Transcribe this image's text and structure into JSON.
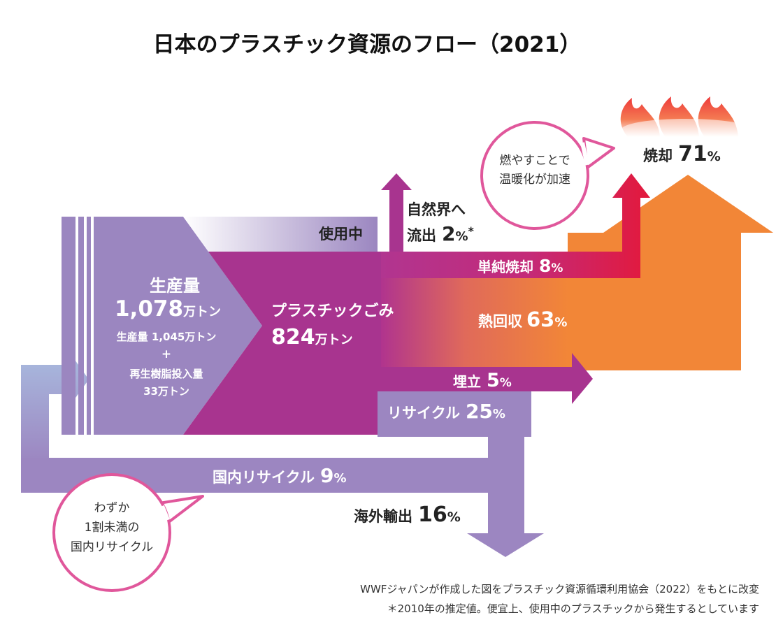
{
  "title": "日本のプラスチック資源のフロー（2021）",
  "production": {
    "heading": "生産量",
    "total_value": "1,078",
    "total_unit": "万トン",
    "breakdown_line1": "生産量 1,045万トン",
    "plus": "+",
    "breakdown_line2": "再生樹脂投入量",
    "breakdown_line3": "33万トン"
  },
  "waste": {
    "label": "プラスチックごみ",
    "value": "824",
    "unit": "万トン"
  },
  "flows": {
    "in_use": {
      "label": "使用中"
    },
    "nature": {
      "label_line1": "自然界へ",
      "label_line2": "流出",
      "value": "2",
      "unit": "%",
      "mark": "*"
    },
    "simple_incineration": {
      "label": "単純焼却",
      "value": "8",
      "unit": "%"
    },
    "heat_recovery": {
      "label": "熱回収",
      "value": "63",
      "unit": "%"
    },
    "landfill": {
      "label": "埋立",
      "value": "5",
      "unit": "%"
    },
    "recycle": {
      "label": "リサイクル",
      "value": "25",
      "unit": "%"
    },
    "domestic_recycle": {
      "label": "国内リサイクル",
      "value": "9",
      "unit": "%"
    },
    "export": {
      "label": "海外輸出",
      "value": "16",
      "unit": "%"
    },
    "incineration_total": {
      "label": "焼却",
      "value": "71",
      "unit": "%"
    }
  },
  "bubbles": {
    "warming": {
      "line1": "燃やすことで",
      "line2": "温暖化が加速"
    },
    "domestic": {
      "line1": "わずか",
      "line2": "1割未満の",
      "line3": "国内リサイクル"
    }
  },
  "footnotes": {
    "source": "WWFジャパンが作成した図をプラスチック資源循環利用協会（2022）をもとに改変",
    "asterisk": "＊2010年の推定値。便宜上、使用中のプラスチックから発生するとしています"
  },
  "colors": {
    "production_purple": "#9b86c0",
    "waste_magenta": "#a8348f",
    "incineration_red": "#e3193c",
    "heat_orange": "#f28637",
    "recycle_purple": "#9d85c0",
    "return_blue": "#a9bde0",
    "bubble_pink": "#e0579b"
  }
}
